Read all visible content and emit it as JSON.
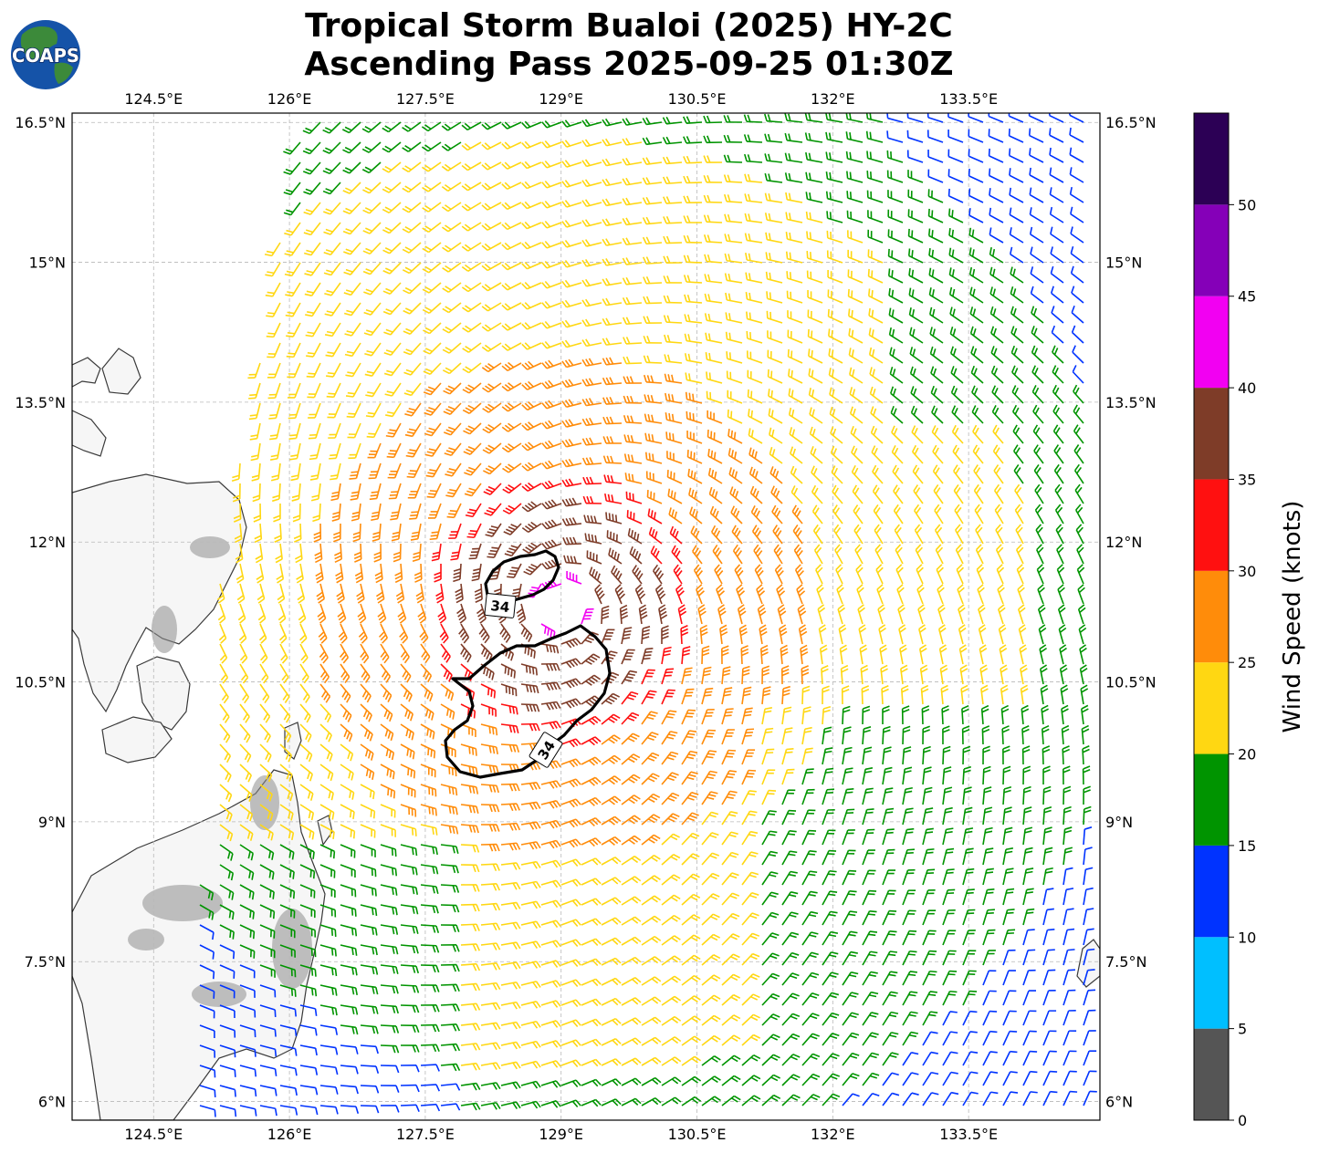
{
  "title": {
    "line1": "Tropical Storm Bualoi (2025) HY-2C",
    "line2": "Ascending Pass 2025-09-25 01:30Z"
  },
  "logo": {
    "text": "COAPS",
    "colors": {
      "ocean": "#1553a8",
      "land": "#3c8a3a",
      "text": "#ffffff"
    }
  },
  "map": {
    "lon_range": [
      123.6,
      134.95
    ],
    "lat_range": [
      5.8,
      16.6
    ],
    "lon_ticks": [
      {
        "value": 124.5,
        "label": "124.5°E"
      },
      {
        "value": 126,
        "label": "126°E"
      },
      {
        "value": 127.5,
        "label": "127.5°E"
      },
      {
        "value": 129,
        "label": "129°E"
      },
      {
        "value": 130.5,
        "label": "130.5°E"
      },
      {
        "value": 132,
        "label": "132°E"
      },
      {
        "value": 133.5,
        "label": "133.5°E"
      }
    ],
    "lat_ticks": [
      {
        "value": 16.5,
        "label": "16.5°N"
      },
      {
        "value": 15,
        "label": "15°N"
      },
      {
        "value": 13.5,
        "label": "13.5°N"
      },
      {
        "value": 12,
        "label": "12°N"
      },
      {
        "value": 10.5,
        "label": "10.5°N"
      },
      {
        "value": 9,
        "label": "9°N"
      },
      {
        "value": 7.5,
        "label": "7.5°N"
      },
      {
        "value": 6,
        "label": "6°N"
      }
    ],
    "gridlines": true,
    "storm_center": {
      "lon": 129.0,
      "lat": 11.3
    },
    "contours": [
      {
        "level": "34",
        "tag": "34"
      },
      {
        "level": "34",
        "tag": "34"
      }
    ]
  },
  "colorbar": {
    "label": "Wind Speed (knots)",
    "bins": [
      {
        "from": 0,
        "to": 5,
        "color": "#555555"
      },
      {
        "from": 5,
        "to": 10,
        "color": "#00bfff"
      },
      {
        "from": 10,
        "to": 15,
        "color": "#0033ff"
      },
      {
        "from": 15,
        "to": 20,
        "color": "#009400"
      },
      {
        "from": 20,
        "to": 25,
        "color": "#ffd712"
      },
      {
        "from": 25,
        "to": 30,
        "color": "#ff8c0a"
      },
      {
        "from": 30,
        "to": 35,
        "color": "#ff1010"
      },
      {
        "from": 35,
        "to": 40,
        "color": "#7e3c28"
      },
      {
        "from": 40,
        "to": 45,
        "color": "#f200f2"
      },
      {
        "from": 45,
        "to": 50,
        "color": "#8500b8"
      },
      {
        "from": 50,
        "to": 55,
        "color": "#2c0055"
      }
    ],
    "ticks": [
      "0",
      "5",
      "10",
      "15",
      "20",
      "25",
      "30",
      "35",
      "40",
      "45",
      "50"
    ]
  }
}
